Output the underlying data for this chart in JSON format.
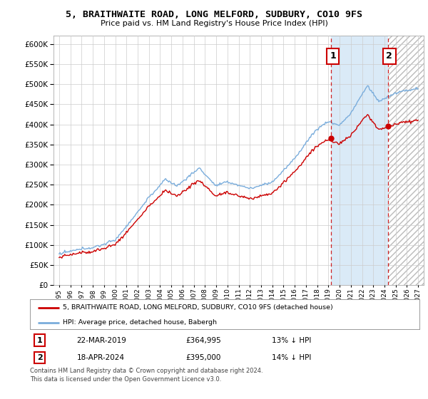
{
  "title": "5, BRAITHWAITE ROAD, LONG MELFORD, SUDBURY, CO10 9FS",
  "subtitle": "Price paid vs. HM Land Registry's House Price Index (HPI)",
  "legend_line1": "5, BRAITHWAITE ROAD, LONG MELFORD, SUDBURY, CO10 9FS (detached house)",
  "legend_line2": "HPI: Average price, detached house, Babergh",
  "annotation1_date": "22-MAR-2019",
  "annotation1_price": "£364,995",
  "annotation1_hpi": "13% ↓ HPI",
  "annotation2_date": "18-APR-2024",
  "annotation2_price": "£395,000",
  "annotation2_hpi": "14% ↓ HPI",
  "footnote": "Contains HM Land Registry data © Crown copyright and database right 2024.\nThis data is licensed under the Open Government Licence v3.0.",
  "hpi_color": "#7aaddc",
  "price_color": "#cc0000",
  "annotation_box_color": "#cc0000",
  "background_color": "#ffffff",
  "grid_color": "#cccccc",
  "shade_between_color": "#daeaf7",
  "ylim": [
    0,
    620000
  ],
  "yticks": [
    0,
    50000,
    100000,
    150000,
    200000,
    250000,
    300000,
    350000,
    400000,
    450000,
    500000,
    550000,
    600000
  ],
  "sale1_x": 2019.25,
  "sale1_y": 364995,
  "sale2_x": 2024.29,
  "sale2_y": 395000,
  "xmin": 1994.5,
  "xmax": 2027.5,
  "xtick_start": 1995,
  "xtick_end": 2027
}
